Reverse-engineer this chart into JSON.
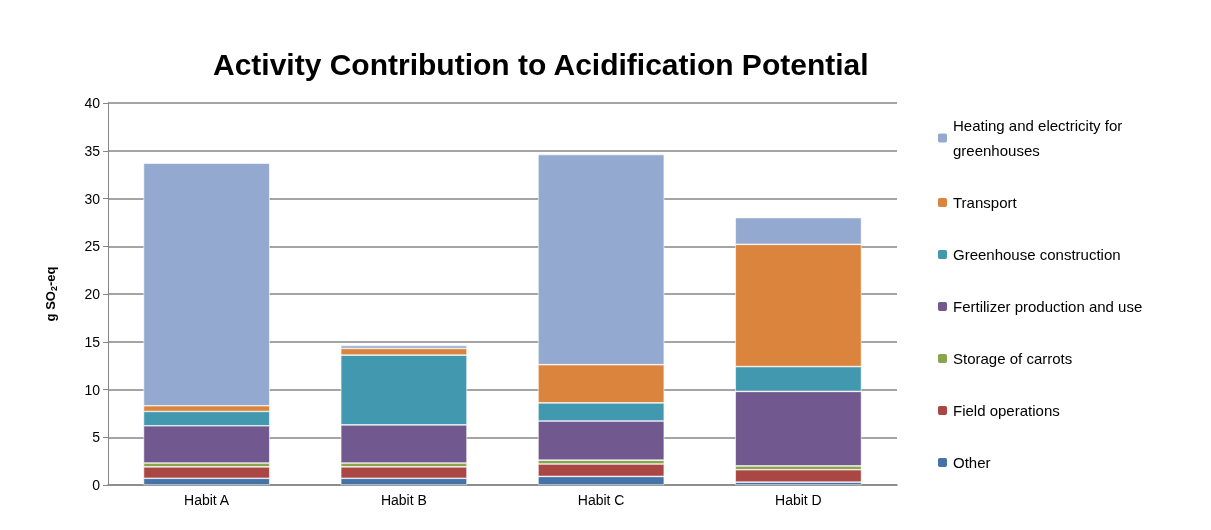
{
  "chart_data": {
    "type": "bar",
    "title": "Activity Contribution to Acidification Potential",
    "ylabel": "g SO$_{2}$-eq",
    "categories": [
      "Habit A",
      "Habit B",
      "Habit C",
      "Habit D"
    ],
    "stacked": true,
    "ylim": [
      0,
      40
    ],
    "yticks": [
      0,
      5,
      10,
      15,
      20,
      25,
      30,
      35,
      40
    ],
    "grid": "y",
    "legend": "right",
    "series": [
      {
        "name": "Other",
        "color": "#4572a7",
        "values": [
          0.7,
          0.7,
          0.9,
          0.3
        ]
      },
      {
        "name": "Field operations",
        "color": "#aa4643",
        "values": [
          1.2,
          1.2,
          1.3,
          1.3
        ]
      },
      {
        "name": "Storage of carrots",
        "color": "#89a54e",
        "values": [
          0.4,
          0.4,
          0.4,
          0.4
        ]
      },
      {
        "name": "Fertilizer production and use",
        "color": "#71588f",
        "values": [
          3.9,
          4.0,
          4.1,
          7.8
        ]
      },
      {
        "name": "Greenhouse construction",
        "color": "#4198af",
        "values": [
          1.5,
          7.3,
          1.9,
          2.6
        ]
      },
      {
        "name": "Transport",
        "color": "#db843d",
        "values": [
          0.6,
          0.7,
          4.0,
          12.8
        ]
      },
      {
        "name": "Heating and electricity for greenhouses",
        "color": "#93a9cf",
        "values": [
          25.4,
          0.3,
          22.0,
          2.8
        ]
      }
    ]
  }
}
